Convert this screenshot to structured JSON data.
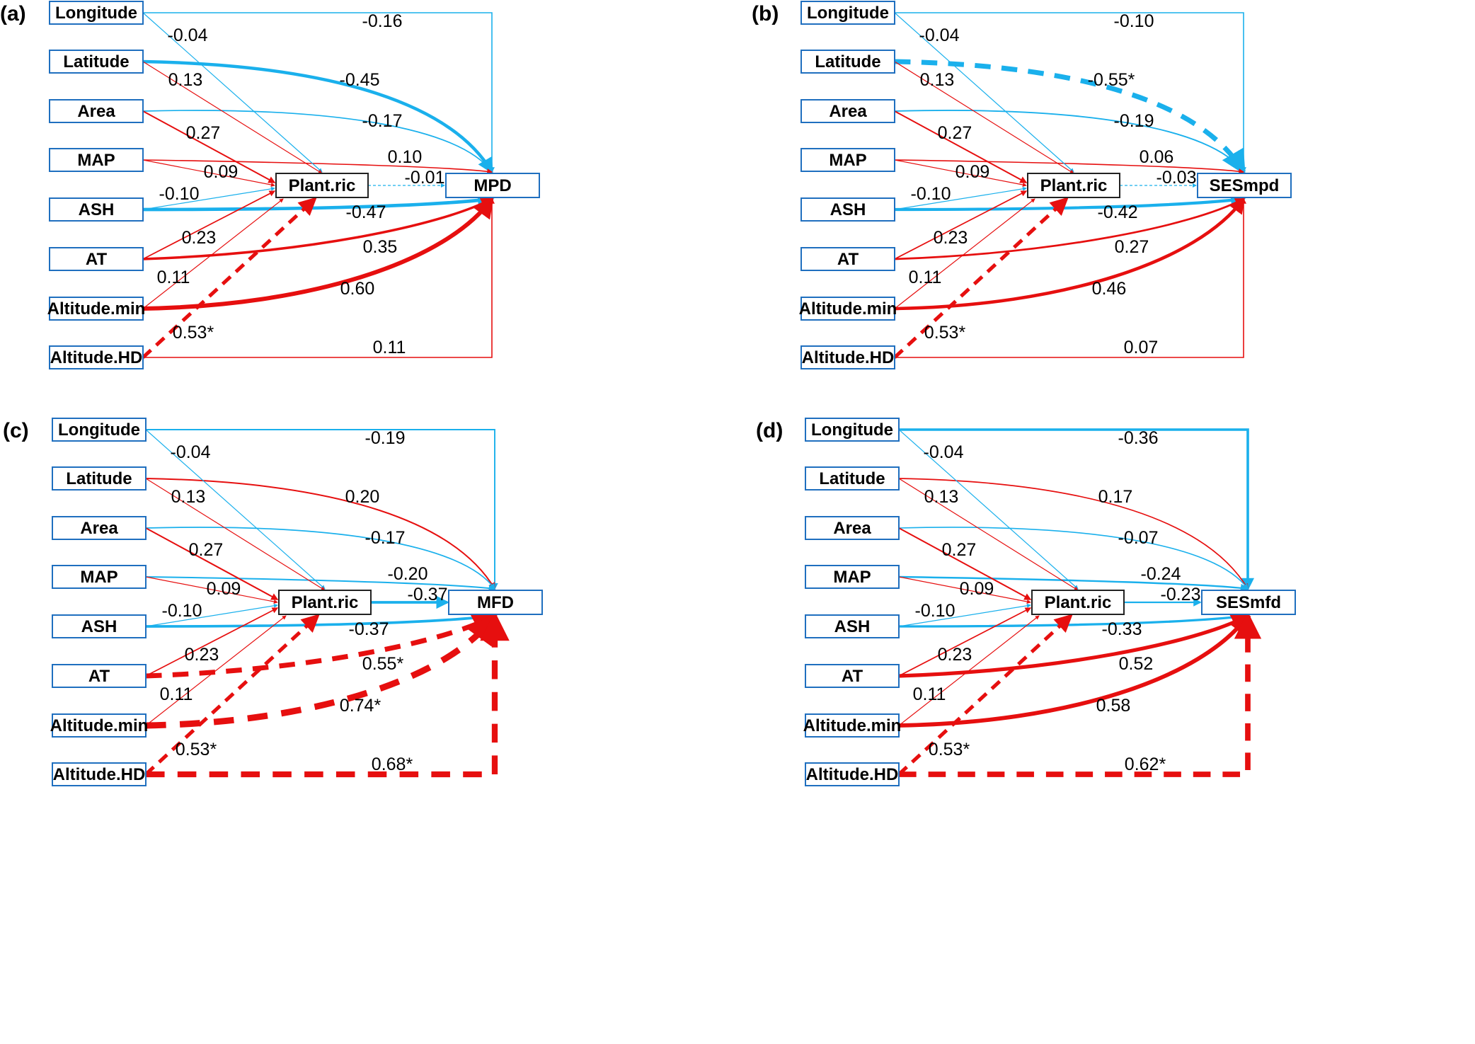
{
  "colors": {
    "positive": "#e60f0f",
    "negative": "#1ab0ec",
    "node_border_predictor": "#1f6fbf",
    "node_border_mediator": "#222222"
  },
  "legend_semantics": {
    "red": "positive path",
    "blue": "negative path",
    "dashed": "significant path (*)"
  },
  "predictors": [
    "Longitude",
    "Latitude",
    "Area",
    "MAP",
    "ASH",
    "AT",
    "Altitude.min",
    "Altitude.HD"
  ],
  "mediator": "Plant.ric",
  "panels": [
    {
      "label": "(a)",
      "response": "MPD",
      "direct": [
        -0.16,
        -0.45,
        -0.17,
        0.1,
        -0.47,
        0.35,
        0.6,
        0.11
      ],
      "direct_labels": [
        "-0.16",
        "-0.45",
        "-0.17",
        "0.10",
        "-0.47",
        "0.35",
        "0.60",
        "0.11"
      ],
      "direct_sig": [
        false,
        false,
        false,
        false,
        false,
        false,
        false,
        false
      ],
      "to_mediator_labels": [
        "-0.04",
        "0.13",
        "0.27",
        "0.09",
        "-0.10",
        "0.23",
        "0.11",
        "0.53*"
      ],
      "to_mediator": [
        -0.04,
        0.13,
        0.27,
        0.09,
        -0.1,
        0.23,
        0.11,
        0.53
      ],
      "to_mediator_sig": [
        false,
        false,
        false,
        false,
        false,
        false,
        false,
        true
      ],
      "mediator_path": -0.01,
      "mediator_path_label": "-0.01",
      "mediator_path_sig": false
    },
    {
      "label": "(b)",
      "response": "SESmpd",
      "direct": [
        -0.1,
        -0.55,
        -0.19,
        0.06,
        -0.42,
        0.27,
        0.46,
        0.07
      ],
      "direct_labels": [
        "-0.10",
        "-0.55*",
        "-0.19",
        "0.06",
        "-0.42",
        "0.27",
        "0.46",
        "0.07"
      ],
      "direct_sig": [
        false,
        true,
        false,
        false,
        false,
        false,
        false,
        false
      ],
      "to_mediator_labels": [
        "-0.04",
        "0.13",
        "0.27",
        "0.09",
        "-0.10",
        "0.23",
        "0.11",
        "0.53*"
      ],
      "to_mediator": [
        -0.04,
        0.13,
        0.27,
        0.09,
        -0.1,
        0.23,
        0.11,
        0.53
      ],
      "to_mediator_sig": [
        false,
        false,
        false,
        false,
        false,
        false,
        false,
        true
      ],
      "mediator_path": -0.03,
      "mediator_path_label": "-0.03",
      "mediator_path_sig": false
    },
    {
      "label": "(c)",
      "response": "MFD",
      "direct": [
        -0.19,
        0.2,
        -0.17,
        -0.2,
        -0.37,
        0.55,
        0.74,
        0.68
      ],
      "direct_labels": [
        "-0.19",
        "0.20",
        "-0.17",
        "-0.20",
        "-0.37",
        "0.55*",
        "0.74*",
        "0.68*"
      ],
      "direct_sig": [
        false,
        false,
        false,
        false,
        false,
        true,
        true,
        true
      ],
      "to_mediator_labels": [
        "-0.04",
        "0.13",
        "0.27",
        "0.09",
        "-0.10",
        "0.23",
        "0.11",
        "0.53*"
      ],
      "to_mediator": [
        -0.04,
        0.13,
        0.27,
        0.09,
        -0.1,
        0.23,
        0.11,
        0.53
      ],
      "to_mediator_sig": [
        false,
        false,
        false,
        false,
        false,
        false,
        false,
        true
      ],
      "mediator_path": -0.37,
      "mediator_path_label": "-0.37",
      "mediator_path_sig": false
    },
    {
      "label": "(d)",
      "response": "SESmfd",
      "direct": [
        -0.36,
        0.17,
        -0.07,
        -0.24,
        -0.33,
        0.52,
        0.58,
        0.62
      ],
      "direct_labels": [
        "-0.36",
        "0.17",
        "-0.07",
        "-0.24",
        "-0.33",
        "0.52",
        "0.58",
        "0.62*"
      ],
      "direct_sig": [
        false,
        false,
        false,
        false,
        false,
        false,
        false,
        true
      ],
      "to_mediator_labels": [
        "-0.04",
        "0.13",
        "0.27",
        "0.09",
        "-0.10",
        "0.23",
        "0.11",
        "0.53*"
      ],
      "to_mediator": [
        -0.04,
        0.13,
        0.27,
        0.09,
        -0.1,
        0.23,
        0.11,
        0.53
      ],
      "to_mediator_sig": [
        false,
        false,
        false,
        false,
        false,
        false,
        false,
        true
      ],
      "mediator_path": -0.23,
      "mediator_path_label": "-0.23",
      "mediator_path_sig": false
    }
  ]
}
